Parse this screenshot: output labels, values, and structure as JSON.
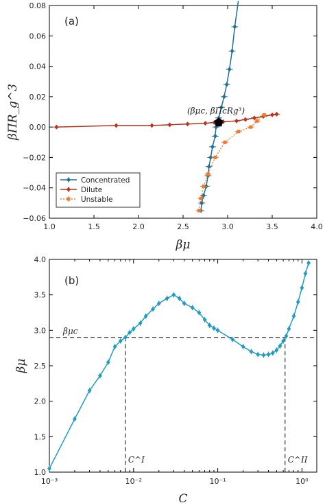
{
  "colors": {
    "concentrated": "#1f6f9a",
    "dilute": "#b8321f",
    "unstable": "#f07a2c",
    "panel_b": "#1f9cc0",
    "critical_point": "#000000",
    "dashed": "#333333"
  },
  "chart_data": [
    {
      "id": "a",
      "type": "scatter",
      "panel_label": "(a)",
      "xlabel": "βμ",
      "ylabel": "βΠR_g^3",
      "xlim": [
        1.0,
        4.0
      ],
      "ylim": [
        -0.06,
        0.08
      ],
      "x_ticks": [
        1.0,
        1.5,
        2.0,
        2.5,
        3.0,
        3.5,
        4.0
      ],
      "y_ticks": [
        -0.06,
        -0.04,
        -0.02,
        0.0,
        0.02,
        0.04,
        0.06,
        0.08
      ],
      "x_tick_labels": [
        "1.0",
        "1.5",
        "2.0",
        "2.5",
        "3.0",
        "3.5",
        "4.0"
      ],
      "y_tick_labels": [
        "−0.06",
        "−0.04",
        "−0.02",
        "0.00",
        "0.02",
        "0.04",
        "0.06",
        "0.08"
      ],
      "legend_position": "lower-left",
      "series": [
        {
          "name": "Concentrated",
          "style": "solid-line-with-markers",
          "color_key": "concentrated",
          "points": [
            [
              2.7,
              -0.055
            ],
            [
              2.71,
              -0.05
            ],
            [
              2.73,
              -0.045
            ],
            [
              2.76,
              -0.039
            ],
            [
              2.78,
              -0.032
            ],
            [
              2.79,
              -0.026
            ],
            [
              2.81,
              -0.02
            ],
            [
              2.83,
              -0.013
            ],
            [
              2.86,
              -0.006
            ],
            [
              2.87,
              0.0
            ],
            [
              2.9,
              0.006
            ],
            [
              2.93,
              0.013
            ],
            [
              2.96,
              0.02
            ],
            [
              2.99,
              0.028
            ],
            [
              3.02,
              0.038
            ],
            [
              3.05,
              0.05
            ],
            [
              3.08,
              0.066
            ],
            [
              3.12,
              0.083
            ]
          ]
        },
        {
          "name": "Dilute",
          "style": "solid-line-with-markers",
          "color_key": "dilute",
          "points": [
            [
              1.08,
              0.0
            ],
            [
              1.75,
              0.001
            ],
            [
              2.15,
              0.001
            ],
            [
              2.35,
              0.0015
            ],
            [
              2.55,
              0.002
            ],
            [
              2.75,
              0.0025
            ],
            [
              2.85,
              0.003
            ],
            [
              2.95,
              0.0035
            ],
            [
              3.1,
              0.004
            ],
            [
              3.2,
              0.005
            ],
            [
              3.3,
              0.006
            ],
            [
              3.4,
              0.007
            ],
            [
              3.5,
              0.008
            ],
            [
              3.55,
              0.0085
            ]
          ]
        },
        {
          "name": "Unstable",
          "style": "dotted-line-with-markers",
          "color_key": "unstable",
          "points": [
            [
              2.68,
              -0.055
            ],
            [
              2.7,
              -0.047
            ],
            [
              2.73,
              -0.039
            ],
            [
              2.78,
              -0.031
            ],
            [
              2.86,
              -0.02
            ],
            [
              2.97,
              -0.01
            ],
            [
              3.12,
              -0.003
            ],
            [
              3.26,
              0.0
            ],
            [
              3.33,
              0.004
            ],
            [
              3.41,
              0.008
            ]
          ]
        }
      ],
      "critical_point": {
        "x": 2.9,
        "y": 0.003,
        "label": "(βμc, βΠcRg³)"
      }
    },
    {
      "id": "b",
      "type": "line",
      "panel_label": "(b)",
      "xlabel": "C",
      "ylabel": "βμ",
      "x_scale": "log",
      "xlim": [
        0.001,
        1.5
      ],
      "ylim": [
        1.0,
        4.0
      ],
      "x_ticks": [
        0.001,
        0.01,
        0.1,
        1.0
      ],
      "x_tick_labels": [
        "10⁻³",
        "10⁻²",
        "10⁻¹",
        "10⁰"
      ],
      "y_ticks": [
        1.0,
        1.5,
        2.0,
        2.5,
        3.0,
        3.5,
        4.0
      ],
      "y_tick_labels": [
        "1.0",
        "1.5",
        "2.0",
        "2.5",
        "3.0",
        "3.5",
        "4.0"
      ],
      "series": [
        {
          "color_key": "panel_b",
          "points": [
            [
              0.001,
              1.05
            ],
            [
              0.002,
              1.75
            ],
            [
              0.003,
              2.15
            ],
            [
              0.004,
              2.36
            ],
            [
              0.005,
              2.55
            ],
            [
              0.006,
              2.77
            ],
            [
              0.007,
              2.85
            ],
            [
              0.008,
              2.9
            ],
            [
              0.009,
              2.97
            ],
            [
              0.01,
              3.02
            ],
            [
              0.012,
              3.1
            ],
            [
              0.014,
              3.2
            ],
            [
              0.017,
              3.3
            ],
            [
              0.02,
              3.38
            ],
            [
              0.025,
              3.45
            ],
            [
              0.03,
              3.5
            ],
            [
              0.035,
              3.45
            ],
            [
              0.04,
              3.38
            ],
            [
              0.05,
              3.32
            ],
            [
              0.06,
              3.25
            ],
            [
              0.07,
              3.15
            ],
            [
              0.08,
              3.07
            ],
            [
              0.09,
              3.03
            ],
            [
              0.1,
              3.0
            ],
            [
              0.15,
              2.87
            ],
            [
              0.2,
              2.77
            ],
            [
              0.25,
              2.7
            ],
            [
              0.3,
              2.66
            ],
            [
              0.35,
              2.65
            ],
            [
              0.4,
              2.66
            ],
            [
              0.45,
              2.68
            ],
            [
              0.5,
              2.72
            ],
            [
              0.55,
              2.78
            ],
            [
              0.6,
              2.85
            ],
            [
              0.65,
              2.92
            ],
            [
              0.7,
              3.02
            ],
            [
              0.8,
              3.2
            ],
            [
              0.9,
              3.4
            ],
            [
              1.0,
              3.6
            ],
            [
              1.1,
              3.8
            ],
            [
              1.2,
              3.95
            ]
          ]
        }
      ],
      "hline": {
        "y": 2.9,
        "label": "βμc"
      },
      "vlines": [
        {
          "x": 0.008,
          "label": "C^I"
        },
        {
          "x": 0.63,
          "label": "C^II"
        }
      ]
    }
  ]
}
